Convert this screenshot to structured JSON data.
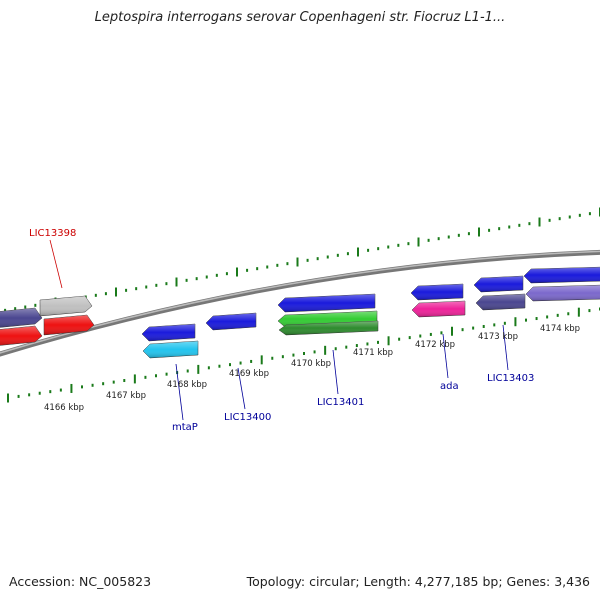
{
  "title": "Leptospira interrogans serovar Copenhageni str. Fiocruz L1-1...",
  "footer": {
    "accession": "Accession: NC_005823",
    "summary": "Topology: circular; Length: 4,277,185 bp; Genes: 3,436"
  },
  "colors": {
    "backbone": "#888888",
    "tick": "#1a7a1a",
    "forward_label": "#cc0000",
    "reverse_label": "#000099"
  },
  "scale_labels": [
    "4166 kbp",
    "4167 kbp",
    "4168 kbp",
    "4169 kbp",
    "4170 kbp",
    "4171 kbp",
    "4172 kbp",
    "4173 kbp",
    "4174 kbp"
  ],
  "features": [
    {
      "id": "f1",
      "color": "#4a4690",
      "strand": "forward",
      "row": "outer"
    },
    {
      "id": "f2",
      "color": "#c0c0c0",
      "strand": "forward",
      "row": "outer"
    },
    {
      "id": "f3",
      "color": "#ee1111",
      "strand": "forward",
      "row": "inner"
    },
    {
      "id": "f4",
      "color": "#ee1111",
      "strand": "forward",
      "row": "inner"
    },
    {
      "id": "f5",
      "color": "#1a1adc",
      "strand": "reverse",
      "row": "outer"
    },
    {
      "id": "f6",
      "color": "#22c4ee",
      "strand": "reverse",
      "row": "inner"
    },
    {
      "id": "f7",
      "color": "#1a1adc",
      "strand": "reverse",
      "row": "outer"
    },
    {
      "id": "f8",
      "color": "#1a1adc",
      "strand": "reverse",
      "row": "outer"
    },
    {
      "id": "f9",
      "color": "#33cc33",
      "strand": "reverse",
      "row": "inner"
    },
    {
      "id": "f10",
      "color": "#2e8b2e",
      "strand": "reverse",
      "row": "inner2"
    },
    {
      "id": "f11",
      "color": "#1a1adc",
      "strand": "reverse",
      "row": "outer"
    },
    {
      "id": "f12",
      "color": "#ee2299",
      "strand": "reverse",
      "row": "inner"
    },
    {
      "id": "f13",
      "color": "#1a1adc",
      "strand": "reverse",
      "row": "outer"
    },
    {
      "id": "f14",
      "color": "#4a4690",
      "strand": "reverse",
      "row": "inner"
    },
    {
      "id": "f15",
      "color": "#1a1adc",
      "strand": "reverse",
      "row": "outer"
    },
    {
      "id": "f16",
      "color": "#7b68cc",
      "strand": "reverse",
      "row": "inner"
    }
  ],
  "gene_labels": [
    {
      "text": "LIC13398",
      "strand": "forward"
    },
    {
      "text": "mtaP",
      "strand": "reverse"
    },
    {
      "text": "LIC13400",
      "strand": "reverse"
    },
    {
      "text": "LIC13401",
      "strand": "reverse"
    },
    {
      "text": "ada",
      "strand": "reverse"
    },
    {
      "text": "LIC13403",
      "strand": "reverse"
    }
  ]
}
